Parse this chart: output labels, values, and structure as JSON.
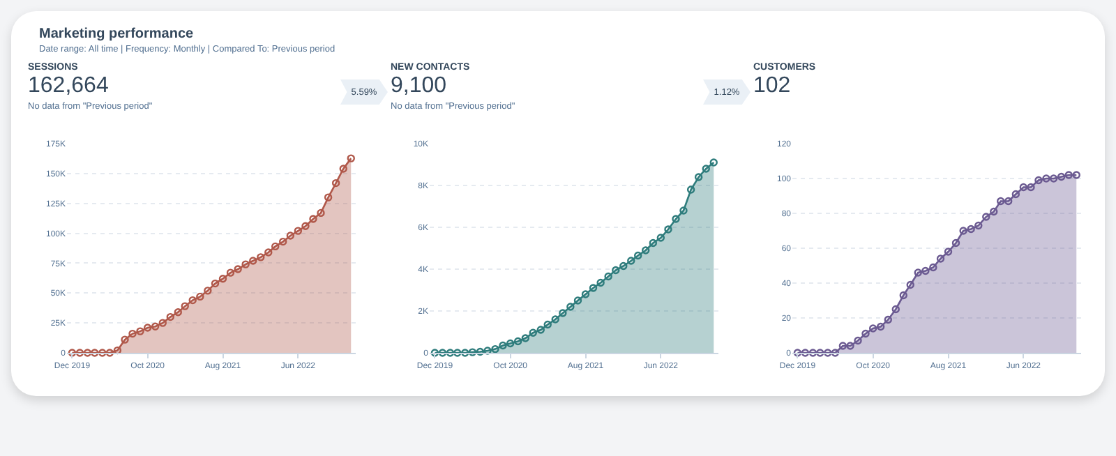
{
  "chart_data": [
    {
      "type": "other",
      "title": "Marketing performance",
      "subtitle": "Date range: All time | Frequency: Monthly | Compared To: Previous period"
    },
    {
      "type": "area",
      "title": "SESSIONS",
      "annotations": [
        "162,664",
        "No data from \"Previous period\"",
        "5.59%"
      ],
      "x": [
        "2019-12",
        "2020-01",
        "2020-02",
        "2020-03",
        "2020-04",
        "2020-05",
        "2020-06",
        "2020-07",
        "2020-08",
        "2020-09",
        "2020-10",
        "2020-11",
        "2020-12",
        "2021-01",
        "2021-02",
        "2021-03",
        "2021-04",
        "2021-05",
        "2021-06",
        "2021-07",
        "2021-08",
        "2021-09",
        "2021-10",
        "2021-11",
        "2021-12",
        "2022-01",
        "2022-02",
        "2022-03",
        "2022-04",
        "2022-05",
        "2022-06",
        "2022-07",
        "2022-08",
        "2022-09",
        "2022-10",
        "2022-11",
        "2022-12",
        "2023-01"
      ],
      "series": [
        {
          "color": "#b0584a",
          "values": [
            0,
            0,
            0,
            0,
            0,
            0,
            2000,
            11000,
            16000,
            18000,
            21000,
            22000,
            25000,
            30000,
            34000,
            39000,
            44000,
            47000,
            52000,
            58000,
            62000,
            67000,
            70000,
            74000,
            77000,
            80000,
            84000,
            89000,
            93000,
            98000,
            102000,
            106000,
            112000,
            117000,
            130000,
            142000,
            154000,
            162664
          ]
        }
      ],
      "xlim": [
        "2019-11-10",
        "2023-01-20"
      ],
      "xticks": [
        {
          "value": "2019-12",
          "label": "Dec 2019"
        },
        {
          "value": "2020-10",
          "label": "Oct 2020"
        },
        {
          "value": "2021-08",
          "label": "Aug 2021"
        },
        {
          "value": "2022-06",
          "label": "Jun 2022"
        }
      ],
      "ylim": [
        0,
        175000
      ],
      "yticks": [
        0,
        {
          "value": 25000,
          "label": "25K"
        },
        {
          "value": 50000,
          "label": "50K"
        },
        {
          "value": 75000,
          "label": "75K"
        },
        {
          "value": 100000,
          "label": "100K"
        },
        {
          "value": 125000,
          "label": "125K"
        },
        {
          "value": 150000,
          "label": "150K"
        },
        {
          "value": 175000,
          "label": "175K"
        }
      ],
      "grid": "y",
      "marker": "circle"
    },
    {
      "type": "area",
      "title": "NEW CONTACTS",
      "annotations": [
        "9,100",
        "No data from \"Previous period\"",
        "1.12%"
      ],
      "x": [
        "2019-12",
        "2020-01",
        "2020-02",
        "2020-03",
        "2020-04",
        "2020-05",
        "2020-06",
        "2020-07",
        "2020-08",
        "2020-09",
        "2020-10",
        "2020-11",
        "2020-12",
        "2021-01",
        "2021-02",
        "2021-03",
        "2021-04",
        "2021-05",
        "2021-06",
        "2021-07",
        "2021-08",
        "2021-09",
        "2021-10",
        "2021-11",
        "2021-12",
        "2022-01",
        "2022-02",
        "2022-03",
        "2022-04",
        "2022-05",
        "2022-06",
        "2022-07",
        "2022-08",
        "2022-09",
        "2022-10",
        "2022-11",
        "2022-12",
        "2023-01"
      ],
      "series": [
        {
          "color": "#2e7c7c",
          "values": [
            0,
            0,
            0,
            0,
            0,
            30,
            50,
            100,
            180,
            350,
            450,
            550,
            700,
            960,
            1100,
            1350,
            1600,
            1900,
            2200,
            2500,
            2800,
            3100,
            3350,
            3650,
            3950,
            4150,
            4400,
            4650,
            4900,
            5250,
            5500,
            5900,
            6400,
            6800,
            7800,
            8400,
            8800,
            9100
          ]
        }
      ],
      "xlim": [
        "2019-11-10",
        "2023-01-20"
      ],
      "xticks": [
        {
          "value": "2019-12",
          "label": "Dec 2019"
        },
        {
          "value": "2020-10",
          "label": "Oct 2020"
        },
        {
          "value": "2021-08",
          "label": "Aug 2021"
        },
        {
          "value": "2022-06",
          "label": "Jun 2022"
        }
      ],
      "ylim": [
        0,
        10000
      ],
      "yticks": [
        0,
        {
          "value": 2000,
          "label": "2K"
        },
        {
          "value": 4000,
          "label": "4K"
        },
        {
          "value": 6000,
          "label": "6K"
        },
        {
          "value": 8000,
          "label": "8K"
        },
        {
          "value": 10000,
          "label": "10K"
        }
      ],
      "grid": "y",
      "marker": "circle"
    },
    {
      "type": "area",
      "title": "CUSTOMERS",
      "annotations": [
        "102"
      ],
      "x": [
        "2019-12",
        "2020-01",
        "2020-02",
        "2020-03",
        "2020-04",
        "2020-05",
        "2020-06",
        "2020-07",
        "2020-08",
        "2020-09",
        "2020-10",
        "2020-11",
        "2020-12",
        "2021-01",
        "2021-02",
        "2021-03",
        "2021-04",
        "2021-05",
        "2021-06",
        "2021-07",
        "2021-08",
        "2021-09",
        "2021-10",
        "2021-11",
        "2021-12",
        "2022-01",
        "2022-02",
        "2022-03",
        "2022-04",
        "2022-05",
        "2022-06",
        "2022-07",
        "2022-08",
        "2022-09",
        "2022-10",
        "2022-11",
        "2022-12",
        "2023-01"
      ],
      "series": [
        {
          "color": "#6b5a91",
          "values": [
            0,
            0,
            0,
            0,
            0,
            0,
            4,
            4,
            7,
            11,
            14,
            15,
            19,
            25,
            33,
            39,
            46,
            47,
            49,
            54,
            58,
            63,
            70,
            71,
            73,
            78,
            81,
            87,
            87,
            91,
            95,
            95,
            99,
            100,
            100,
            101,
            102,
            102
          ]
        }
      ],
      "xlim": [
        "2019-11-10",
        "2023-01-20"
      ],
      "xticks": [
        {
          "value": "2019-12",
          "label": "Dec 2019"
        },
        {
          "value": "2020-10",
          "label": "Oct 2020"
        },
        {
          "value": "2021-08",
          "label": "Aug 2021"
        },
        {
          "value": "2022-06",
          "label": "Jun 2022"
        }
      ],
      "ylim": [
        0,
        120
      ],
      "yticks": [
        0,
        20,
        40,
        60,
        80,
        100,
        120
      ],
      "grid": "y",
      "marker": "circle"
    }
  ]
}
